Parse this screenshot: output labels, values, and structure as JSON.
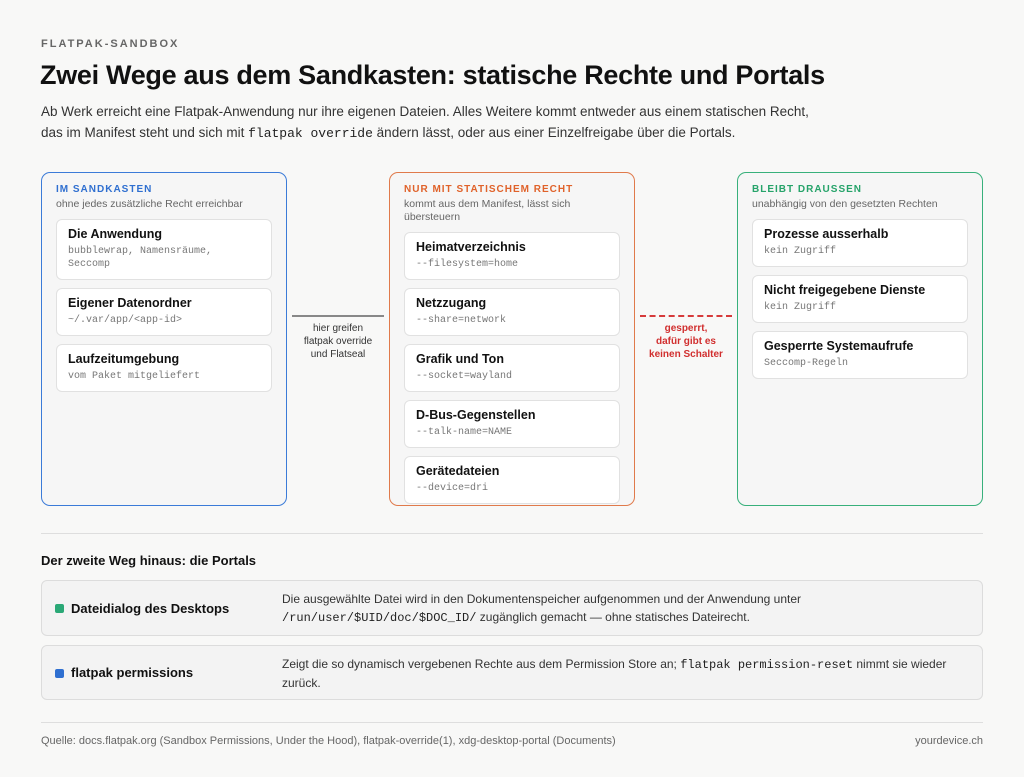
{
  "eyebrow": "FLATPAK-SANDBOX",
  "title": "Zwei Wege aus dem Sandkasten: statische Rechte und Portals",
  "intro": {
    "line1": "Ab Werk erreicht eine Flatpak-Anwendung nur ihre eigenen Dateien. Alles Weitere kommt entweder aus einem statischen Recht,",
    "line2_pre": "das im Manifest steht und sich mit ",
    "line2_code": "flatpak override",
    "line2_post": " ändern lässt, oder aus einer Einzelfreigabe über die Portals."
  },
  "columns": [
    {
      "head": "IM SANDKASTEN",
      "sub": "ohne jedes zusätzliche Recht erreichbar",
      "accent": "#3b7bd8",
      "cards": [
        {
          "title": "Die Anwendung",
          "sub": "bubblewrap, Namensräume, Seccomp"
        },
        {
          "title": "Eigener Datenordner",
          "sub": "~/.var/app/<app-id>"
        },
        {
          "title": "Laufzeitumgebung",
          "sub": "vom Paket mitgeliefert"
        }
      ]
    },
    {
      "head": "NUR MIT STATISCHEM RECHT",
      "sub": "kommt aus dem Manifest, lässt sich übersteuern",
      "accent": "#e07a4b",
      "cards": [
        {
          "title": "Heimatverzeichnis",
          "sub": "--filesystem=home"
        },
        {
          "title": "Netzzugang",
          "sub": "--share=network"
        },
        {
          "title": "Grafik und Ton",
          "sub": "--socket=wayland"
        },
        {
          "title": "D-Bus-Gegenstellen",
          "sub": "--talk-name=NAME"
        },
        {
          "title": "Gerätedateien",
          "sub": "--device=dri"
        }
      ]
    },
    {
      "head": "BLEIBT DRAUSSEN",
      "sub": "unabhängig von den gesetzten Rechten",
      "accent": "#38b07b",
      "cards": [
        {
          "title": "Prozesse ausserhalb",
          "sub": "kein Zugriff"
        },
        {
          "title": "Nicht freigegebene Dienste",
          "sub": "kein Zugriff"
        },
        {
          "title": "Gesperrte Systemaufrufe",
          "sub": "Seccomp-Regeln"
        }
      ]
    }
  ],
  "connector1": {
    "l1": "hier greifen",
    "l2": "flatpak override",
    "l3": "und Flatseal"
  },
  "connector2": {
    "l1": "gesperrt,",
    "l2": "dafür gibt es",
    "l3": "keinen Schalter"
  },
  "portals": {
    "title": "Der zweite Weg hinaus: die Portals",
    "rows": [
      {
        "name": "Dateidialog des Desktops",
        "color": "#2aa876",
        "desc_pre": "Die ausgewählte Datei wird in den Dokumentenspeicher aufgenommen und der Anwendung unter",
        "desc_code": "/run/user/$UID/doc/$DOC_ID/",
        "desc_post": " zugänglich gemacht — ohne statisches Dateirecht."
      },
      {
        "name": "flatpak permissions",
        "color": "#2f6fd0",
        "desc_pre": "Zeigt die so dynamisch vergebenen Rechte aus dem Permission Store an; ",
        "desc_code": "flatpak permission-reset",
        "desc_post": " nimmt sie wieder zurück."
      }
    ]
  },
  "footer": {
    "source": "Quelle: docs.flatpak.org (Sandbox Permissions, Under the Hood), flatpak-override(1), xdg-desktop-portal (Documents)",
    "site": "yourdevice.ch"
  }
}
